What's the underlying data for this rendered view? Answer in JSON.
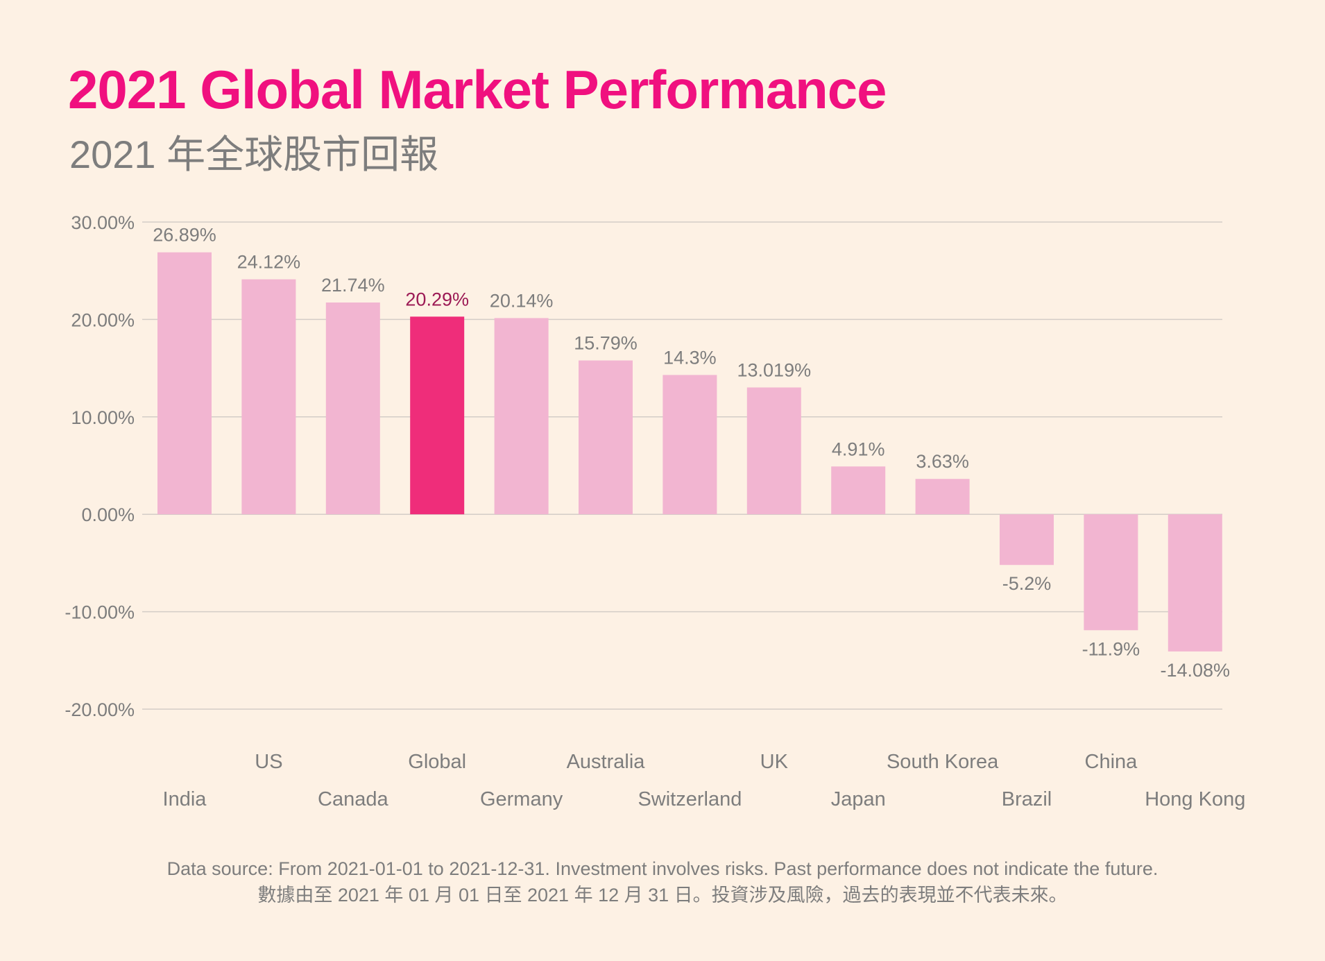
{
  "title": "2021 Global Market Performance",
  "subtitle": "2021 年全球股市回報",
  "footer": {
    "line1": "Data source: From 2021-01-01 to 2021-12-31. Investment involves risks. Past performance does not indicate the future.",
    "line2": "數據由至 2021 年 01 月 01 日至 2021 年 12 月 31 日。投資涉及風險，過去的表現並不代表未來。"
  },
  "colors": {
    "bar": "#f2b5d1",
    "highlight_bar": "#ef2d7a",
    "highlight_label": "#9c1a55",
    "title": "#f0107f",
    "text": "#7d7d7d",
    "grid": "#d3cdc7"
  },
  "chart_data": {
    "type": "bar",
    "categories": [
      "India",
      "US",
      "Canada",
      "Global",
      "Germany",
      "Australia",
      "Switzerland",
      "UK",
      "Japan",
      "South Korea",
      "Brazil",
      "China",
      "Hong Kong"
    ],
    "values": [
      26.89,
      24.12,
      21.74,
      20.29,
      20.14,
      15.79,
      14.3,
      13.019,
      4.91,
      3.63,
      -5.2,
      -11.9,
      -14.08
    ],
    "data_labels": [
      "26.89%",
      "24.12%",
      "21.74%",
      "20.29%",
      "20.14%",
      "15.79%",
      "14.3%",
      "13.019%",
      "4.91%",
      "3.63%",
      "-5.2%",
      "-11.9%",
      "-14.08%"
    ],
    "highlight": "Global",
    "ylim": [
      -20,
      30
    ],
    "yticks": [
      30,
      20,
      10,
      0,
      -10,
      -20
    ],
    "ytick_labels": [
      "30.00%",
      "20.00%",
      "10.00%",
      "0.00%",
      "-10.00%",
      "-20.00%"
    ],
    "grid": true,
    "legend": "none"
  }
}
